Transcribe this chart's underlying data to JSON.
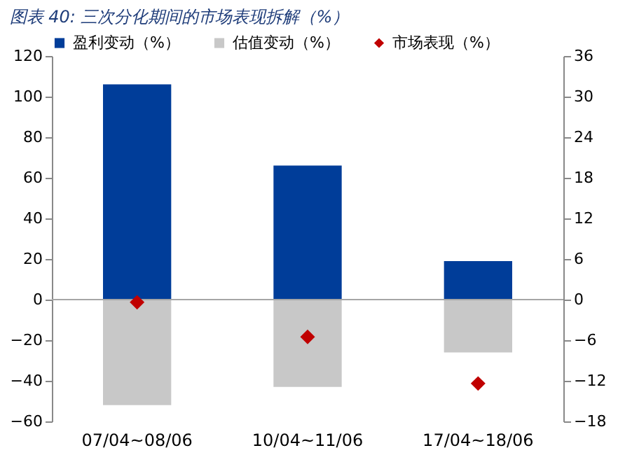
{
  "chart_data": {
    "type": "bar",
    "title": "图表 40: 三次分化期间的市场表现拆解（%）",
    "categories": [
      "07/04~08/06",
      "10/04~11/06",
      "17/04~18/06"
    ],
    "stacked": true,
    "series": [
      {
        "name": "盈利变动（%）",
        "color": "#003d99",
        "values": [
          106,
          66,
          19
        ]
      },
      {
        "name": "估值变动（%）",
        "color": "#c8c8c8",
        "values": [
          -52,
          -43,
          -26
        ]
      },
      {
        "name": "市场表现（%）",
        "color": "#c00000",
        "type": "scatter",
        "axis": "y2",
        "marker": "diamond",
        "values": [
          -0.4,
          -5.5,
          -12.4
        ]
      }
    ],
    "ylim": [
      -60,
      120
    ],
    "yticks": [
      -60,
      -40,
      -20,
      0,
      20,
      40,
      60,
      80,
      100,
      120
    ],
    "y2lim": [
      -18,
      36
    ],
    "y2ticks": [
      -18,
      -12,
      -6,
      0,
      6,
      12,
      18,
      24,
      30,
      36
    ],
    "ref_lines": [
      {
        "axis": "y",
        "value": 0,
        "color": "#a6a6a6"
      }
    ],
    "grid": false,
    "legend": "top"
  }
}
